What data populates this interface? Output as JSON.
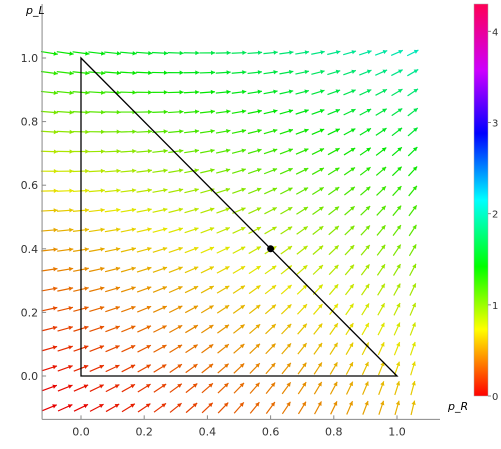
{
  "chart_data": {
    "type": "vector-field",
    "title": "",
    "xlabel": "p_R",
    "ylabel": "p_L",
    "xlim": [
      -0.12,
      1.1
    ],
    "ylim": [
      -0.13,
      1.12
    ],
    "xticks": [
      "0.0",
      "0.2",
      "0.4",
      "0.6",
      "0.8",
      "1.0"
    ],
    "yticks": [
      "0.0",
      "0.2",
      "0.4",
      "0.6",
      "0.8",
      "1.0"
    ],
    "xtick_values": [
      0,
      0.2,
      0.4,
      0.6,
      0.8,
      1.0
    ],
    "ytick_values": [
      0,
      0.2,
      0.4,
      0.6,
      0.8,
      1.0
    ],
    "grid": false,
    "field": {
      "x_start": -0.1,
      "x_step": 0.05,
      "x_count": 24,
      "y_start": -0.1,
      "y_step": 0.062,
      "y_count": 19,
      "stable_point": [
        0.6,
        0.4
      ]
    },
    "triangle": [
      [
        0,
        0
      ],
      [
        1,
        0
      ],
      [
        0,
        1
      ]
    ],
    "fixed_point": [
      0.6,
      0.4
    ],
    "colorbar": {
      "range": [
        0,
        4.3
      ],
      "ticks": [
        "0",
        "1",
        "2",
        "3",
        "4"
      ],
      "tick_values": [
        0,
        1,
        2,
        3,
        4
      ],
      "colormap": "hue-red-to-magenta"
    }
  }
}
